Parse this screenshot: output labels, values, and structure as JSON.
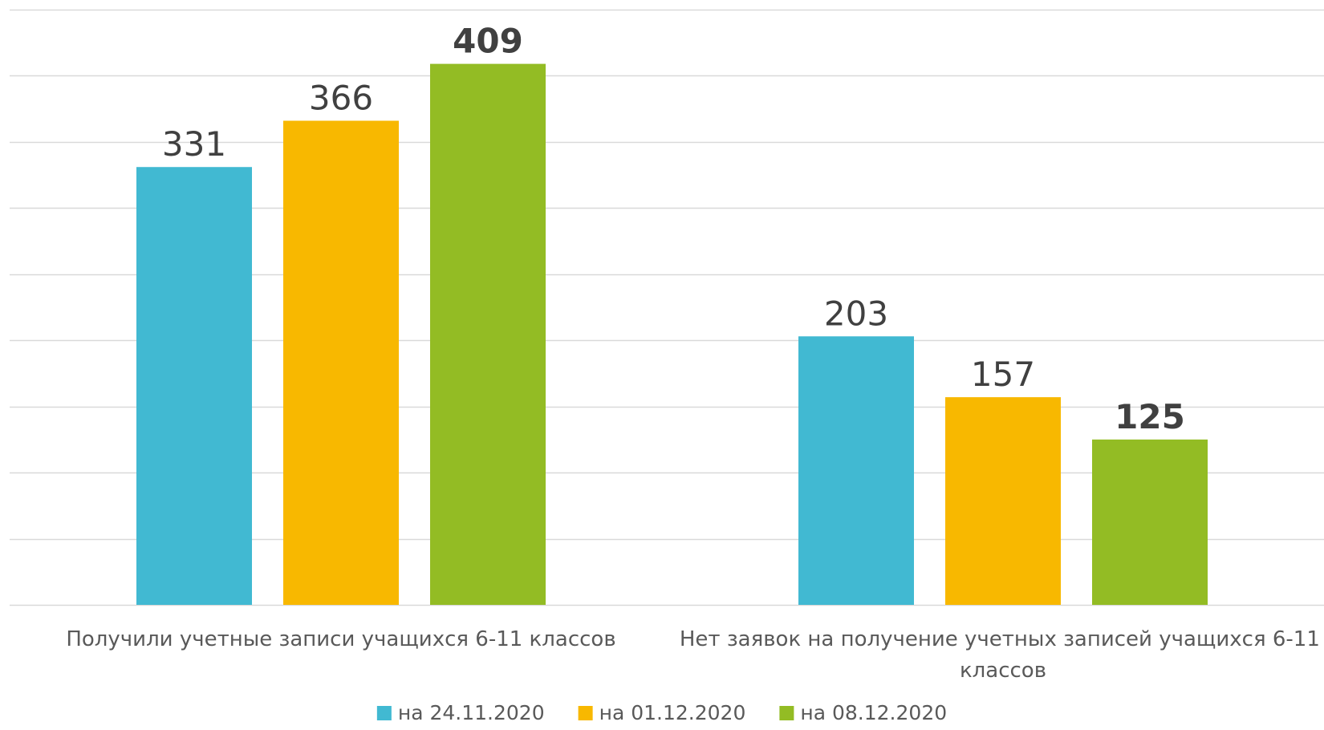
{
  "chart_data": {
    "type": "bar",
    "categories": [
      "Получили учетные записи учащихся 6-11 классов",
      "Нет заявок на получение учетных записей учащихся 6-11 классов"
    ],
    "series": [
      {
        "name": "на 24.11.2020",
        "values": [
          331,
          203
        ],
        "color": "#41B9D2",
        "bold_labels": false
      },
      {
        "name": "на 01.12.2020",
        "values": [
          366,
          157
        ],
        "color": "#F8B800",
        "bold_labels": false
      },
      {
        "name": "на 08.12.2020",
        "values": [
          409,
          125
        ],
        "color": "#93BC24",
        "bold_labels": true
      }
    ],
    "ylim": [
      0,
      450
    ],
    "gridline_step": 50,
    "grid": true,
    "axis_labels_visible": false,
    "legend_position": "bottom",
    "gridline_color": "#D9D9D9",
    "category_label_color": "#595959",
    "value_label_color": "#404040"
  }
}
